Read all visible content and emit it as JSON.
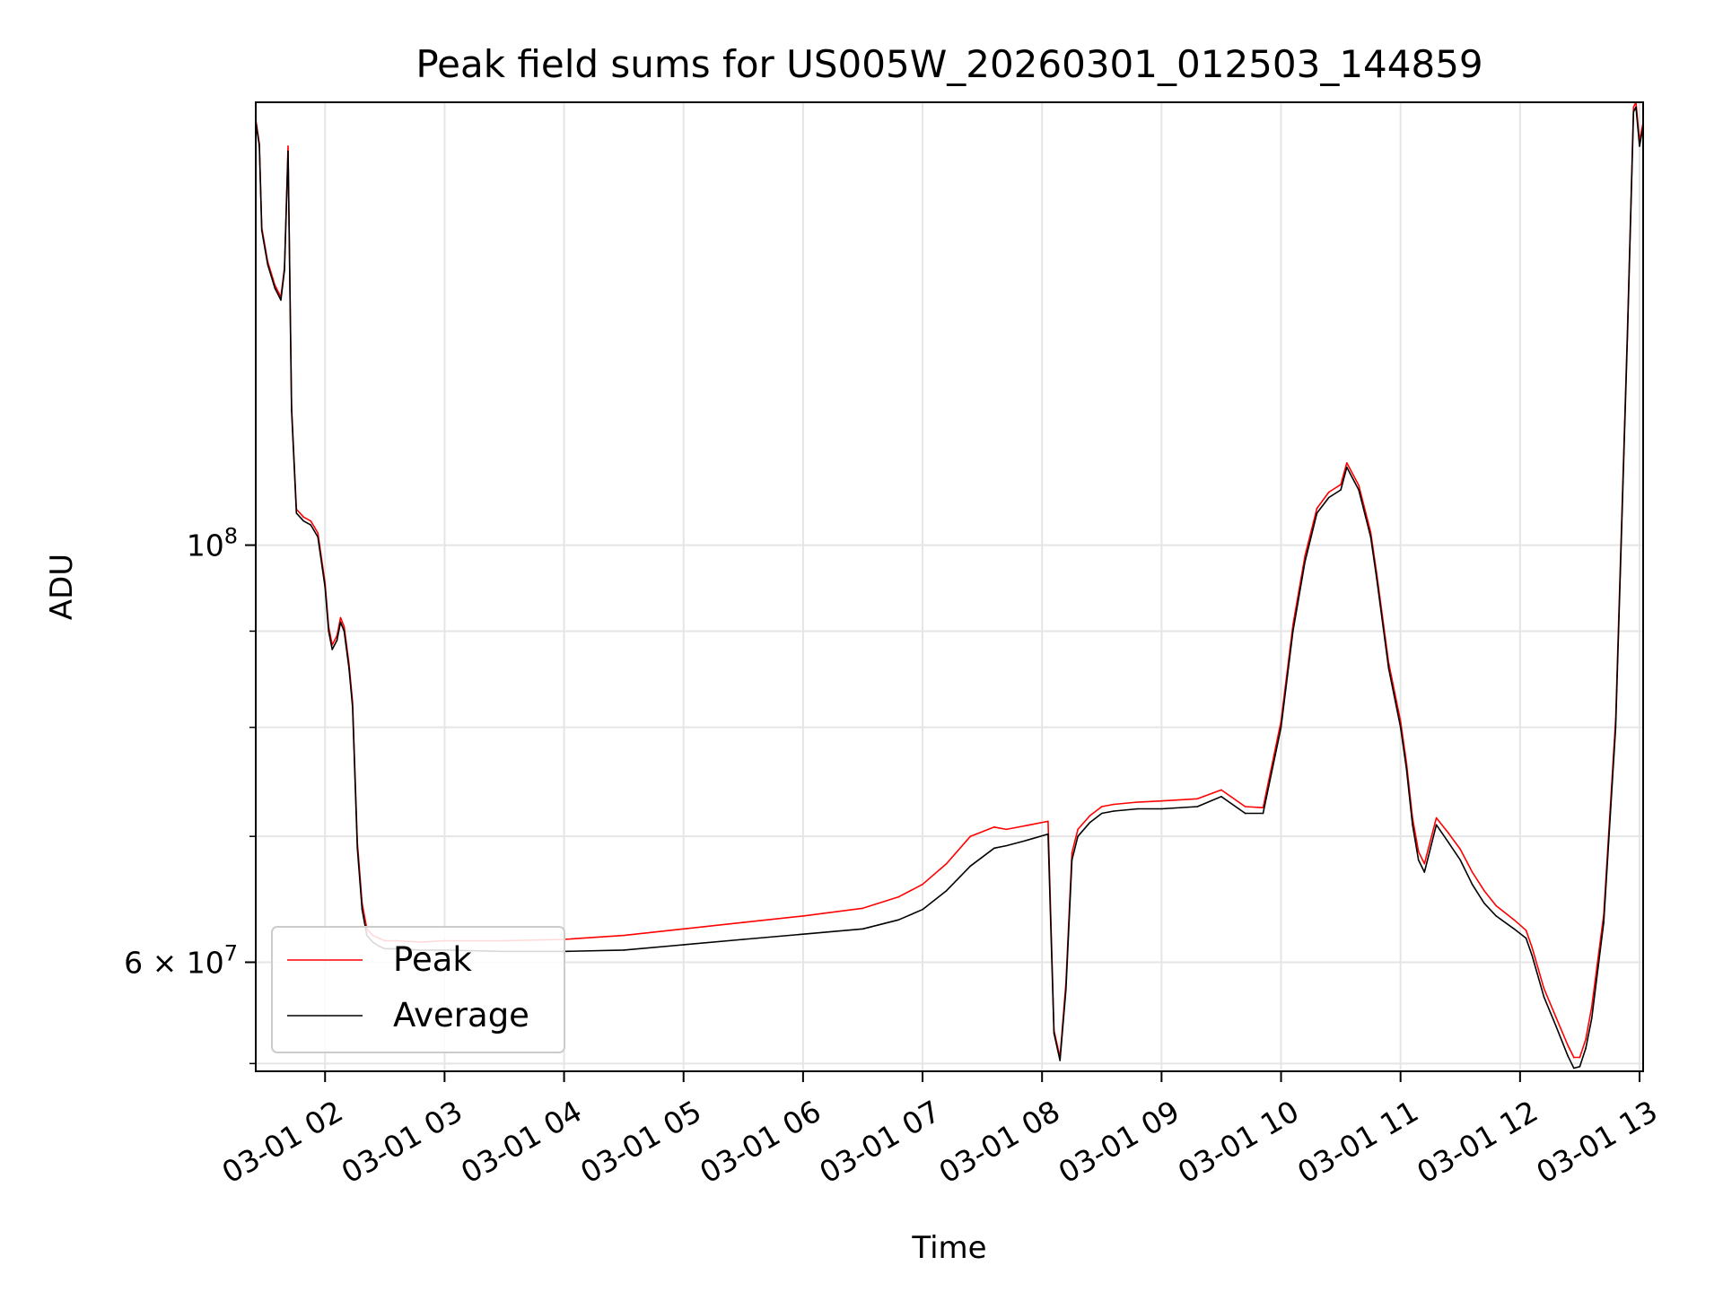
{
  "chart_data": {
    "type": "line",
    "title": "Peak field sums for US005W_20260301_012503_144859",
    "xlabel": "Time",
    "ylabel": "ADU",
    "yscale": "log",
    "xlim": [
      1.42,
      13.03
    ],
    "ylim": [
      52500000,
      172000000
    ],
    "grid": true,
    "x_ticks": [
      {
        "value": 2,
        "label": "03-01 02"
      },
      {
        "value": 3,
        "label": "03-01 03"
      },
      {
        "value": 4,
        "label": "03-01 04"
      },
      {
        "value": 5,
        "label": "03-01 05"
      },
      {
        "value": 6,
        "label": "03-01 06"
      },
      {
        "value": 7,
        "label": "03-01 07"
      },
      {
        "value": 8,
        "label": "03-01 08"
      },
      {
        "value": 9,
        "label": "03-01 09"
      },
      {
        "value": 10,
        "label": "03-01 10"
      },
      {
        "value": 11,
        "label": "03-01 11"
      },
      {
        "value": 12,
        "label": "03-01 12"
      },
      {
        "value": 13,
        "label": "03-01 13"
      }
    ],
    "y_major_ticks": [
      {
        "value": 60000000,
        "base": "6 × 10",
        "exp": "7"
      },
      {
        "value": 100000000,
        "base": "10",
        "exp": "8"
      }
    ],
    "y_minor_ticks": [
      53000000,
      70000000,
      80000000,
      90000000
    ],
    "legend": {
      "position": "lower-left",
      "entries": [
        {
          "name": "Peak",
          "color": "#ff0000"
        },
        {
          "name": "Average",
          "color": "#000000"
        }
      ]
    },
    "series": [
      {
        "name": "Average",
        "color": "#000000",
        "x": [
          1.42,
          1.45,
          1.47,
          1.52,
          1.58,
          1.63,
          1.66,
          1.69,
          1.72,
          1.76,
          1.82,
          1.88,
          1.94,
          2.0,
          2.03,
          2.06,
          2.1,
          2.13,
          2.16,
          2.2,
          2.23,
          2.27,
          2.31,
          2.35,
          2.4,
          2.45,
          2.5,
          2.6,
          2.8,
          3.0,
          3.5,
          4.0,
          4.5,
          5.0,
          5.5,
          6.0,
          6.5,
          6.8,
          7.0,
          7.2,
          7.4,
          7.6,
          7.7,
          7.85,
          8.05,
          8.1,
          8.15,
          8.2,
          8.25,
          8.3,
          8.4,
          8.5,
          8.6,
          8.8,
          9.0,
          9.3,
          9.5,
          9.7,
          9.85,
          10.0,
          10.1,
          10.2,
          10.3,
          10.4,
          10.5,
          10.55,
          10.65,
          10.75,
          10.8,
          10.9,
          11.0,
          11.05,
          11.1,
          11.15,
          11.2,
          11.3,
          11.4,
          11.5,
          11.6,
          11.7,
          11.8,
          11.95,
          12.05,
          12.1,
          12.2,
          12.3,
          12.4,
          12.45,
          12.5,
          12.55,
          12.6,
          12.7,
          12.8,
          12.9,
          12.95,
          12.97,
          13.0,
          13.03
        ],
        "values": [
          168000000,
          163000000,
          147000000,
          141000000,
          137000000,
          135000000,
          140000000,
          162000000,
          118000000,
          104000000,
          103000000,
          102500000,
          101000000,
          95000000,
          90000000,
          88000000,
          89000000,
          91000000,
          90000000,
          86000000,
          82000000,
          69000000,
          64000000,
          62000000,
          61500000,
          61200000,
          61000000,
          61000000,
          60900000,
          60900000,
          60800000,
          60800000,
          60900000,
          61300000,
          61700000,
          62100000,
          62500000,
          63200000,
          64000000,
          65500000,
          67500000,
          69000000,
          69200000,
          69600000,
          70200000,
          55000000,
          53200000,
          58000000,
          68000000,
          70000000,
          71200000,
          72000000,
          72200000,
          72400000,
          72400000,
          72600000,
          73500000,
          72000000,
          72000000,
          80000000,
          90000000,
          98000000,
          104000000,
          106000000,
          107000000,
          110000000,
          107000000,
          101000000,
          96000000,
          86000000,
          80000000,
          76000000,
          71000000,
          68000000,
          67000000,
          71000000,
          69500000,
          68000000,
          66000000,
          64500000,
          63500000,
          62500000,
          61800000,
          60500000,
          57500000,
          55500000,
          53500000,
          52700000,
          52800000,
          54000000,
          56000000,
          63000000,
          80000000,
          130000000,
          170000000,
          171000000,
          163000000,
          167000000
        ]
      },
      {
        "name": "Peak",
        "color": "#ff0000",
        "x": [
          1.42,
          1.45,
          1.47,
          1.52,
          1.58,
          1.63,
          1.66,
          1.69,
          1.72,
          1.76,
          1.82,
          1.88,
          1.94,
          2.0,
          2.03,
          2.06,
          2.1,
          2.13,
          2.16,
          2.2,
          2.23,
          2.27,
          2.31,
          2.35,
          2.4,
          2.45,
          2.5,
          2.6,
          2.8,
          3.0,
          3.5,
          4.0,
          4.5,
          5.0,
          5.5,
          6.0,
          6.5,
          6.8,
          7.0,
          7.2,
          7.4,
          7.6,
          7.7,
          7.85,
          8.05,
          8.1,
          8.15,
          8.2,
          8.25,
          8.3,
          8.4,
          8.5,
          8.6,
          8.8,
          9.0,
          9.3,
          9.5,
          9.7,
          9.85,
          10.0,
          10.1,
          10.2,
          10.3,
          10.4,
          10.5,
          10.55,
          10.65,
          10.75,
          10.8,
          10.9,
          11.0,
          11.05,
          11.1,
          11.15,
          11.2,
          11.3,
          11.4,
          11.5,
          11.6,
          11.7,
          11.8,
          11.95,
          12.05,
          12.1,
          12.2,
          12.3,
          12.4,
          12.45,
          12.5,
          12.55,
          12.6,
          12.7,
          12.8,
          12.9,
          12.95,
          12.97,
          13.0,
          13.03
        ],
        "values": [
          168500000,
          163500000,
          147500000,
          141500000,
          137500000,
          135500000,
          140500000,
          163000000,
          118500000,
          104500000,
          103500000,
          103000000,
          101500000,
          95500000,
          90500000,
          88500000,
          89500000,
          91500000,
          90500000,
          86500000,
          82500000,
          69500000,
          64500000,
          62500000,
          62000000,
          61800000,
          61600000,
          61600000,
          61500000,
          61600000,
          61600000,
          61700000,
          62000000,
          62500000,
          63000000,
          63500000,
          64100000,
          65000000,
          66000000,
          67700000,
          70000000,
          70800000,
          70600000,
          70900000,
          71300000,
          55200000,
          53400000,
          58500000,
          68600000,
          70600000,
          71800000,
          72600000,
          72800000,
          73000000,
          73100000,
          73300000,
          74100000,
          72600000,
          72500000,
          80600000,
          90700000,
          98700000,
          104600000,
          106700000,
          107700000,
          110600000,
          107600000,
          101600000,
          96600000,
          86600000,
          80600000,
          76600000,
          71600000,
          68700000,
          67700000,
          71600000,
          70300000,
          68900000,
          67000000,
          65500000,
          64300000,
          63200000,
          62400000,
          61100000,
          58100000,
          56100000,
          54200000,
          53400000,
          53400000,
          54600000,
          56800000,
          63600000,
          80800000,
          131000000,
          171000000,
          172000000,
          164000000,
          167800000
        ]
      }
    ]
  }
}
